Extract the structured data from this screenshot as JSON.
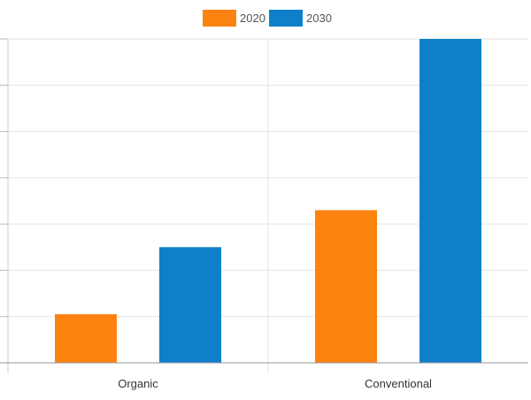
{
  "chart_data": {
    "type": "bar",
    "title": "",
    "xlabel": "",
    "ylabel": "",
    "categories": [
      "Organic",
      "Conventional"
    ],
    "series": [
      {
        "name": "2020",
        "color": "#fd8311",
        "values": [
          1.05,
          3.3
        ]
      },
      {
        "name": "2030",
        "color": "#0e80ca",
        "values": [
          2.5,
          7.0
        ]
      }
    ],
    "ylim": [
      0,
      7.0
    ],
    "y_gridline_step": 1,
    "y_tick_labels_visible": false,
    "grid": true,
    "legend_position": "top-center"
  }
}
